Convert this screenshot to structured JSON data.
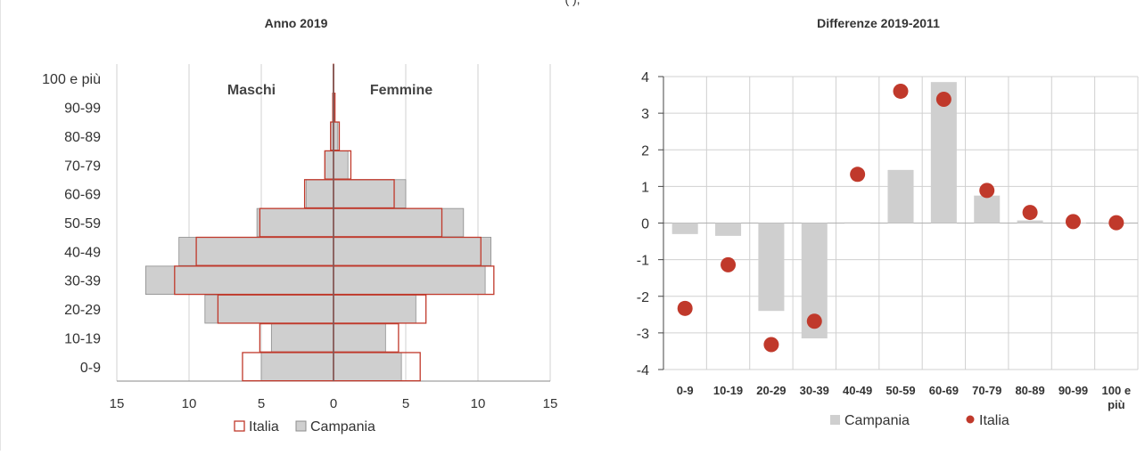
{
  "header_fragment": "(                              ),",
  "colors": {
    "campania_fill": "#cfcfcf",
    "campania_stroke": "#8c8c8c",
    "italia": "#c0392b",
    "grid": "#d0d0d0",
    "axis": "#444444",
    "frame": "#c8c8c8"
  },
  "chart_data": [
    {
      "type": "bar",
      "subtype": "population-pyramid",
      "title": "Anno 2019",
      "categories": [
        "0-9",
        "10-19",
        "20-29",
        "30-39",
        "40-49",
        "50-59",
        "60-69",
        "70-79",
        "80-89",
        "90-99",
        "100 e più"
      ],
      "side_labels": {
        "left": "Maschi",
        "right": "Femmine"
      },
      "xlim": [
        -15,
        15
      ],
      "xticks": [
        -15,
        -10,
        -5,
        0,
        5,
        10,
        15
      ],
      "xtick_labels": [
        "15",
        "10",
        "5",
        "0",
        "5",
        "10",
        "15"
      ],
      "legend": [
        "Italia",
        "Campania"
      ],
      "legend_position": "bottom",
      "grid": true,
      "series": [
        {
          "name": "Campania",
          "style": "filled",
          "maschi": [
            5.0,
            4.3,
            8.9,
            13.0,
            10.7,
            5.3,
            1.9,
            0.6,
            0.2,
            0.05,
            0.01
          ],
          "femmine": [
            4.7,
            3.6,
            5.7,
            10.5,
            10.9,
            9.0,
            5.0,
            1.0,
            0.3,
            0.07,
            0.01
          ]
        },
        {
          "name": "Italia",
          "style": "outline",
          "maschi": [
            6.3,
            5.1,
            8.0,
            11.0,
            9.5,
            5.1,
            2.0,
            0.6,
            0.2,
            0.05,
            0.01
          ],
          "femmine": [
            6.0,
            4.5,
            6.4,
            11.1,
            10.2,
            7.5,
            4.2,
            1.2,
            0.4,
            0.1,
            0.01
          ]
        }
      ]
    },
    {
      "type": "bar",
      "title": "Differenze 2019-2011",
      "categories": [
        "0-9",
        "10-19",
        "20-29",
        "30-39",
        "40-49",
        "50-59",
        "60-69",
        "70-79",
        "80-89",
        "90-99",
        "100 e più"
      ],
      "ylim": [
        -4,
        4
      ],
      "yticks": [
        -4,
        -3,
        -2,
        -1,
        0,
        1,
        2,
        3,
        4
      ],
      "grid": true,
      "legend": [
        "Campania",
        "Italia"
      ],
      "legend_position": "bottom",
      "series": [
        {
          "name": "Campania",
          "type": "bar",
          "values": [
            -0.3,
            -0.35,
            -2.4,
            -3.15,
            0.02,
            1.45,
            3.85,
            0.75,
            0.07,
            0.01,
            0.0
          ]
        },
        {
          "name": "Italia",
          "type": "scatter",
          "values": [
            -2.33,
            -1.14,
            -3.32,
            -2.68,
            1.33,
            3.6,
            3.38,
            0.89,
            0.29,
            0.04,
            0.01
          ]
        }
      ]
    }
  ]
}
